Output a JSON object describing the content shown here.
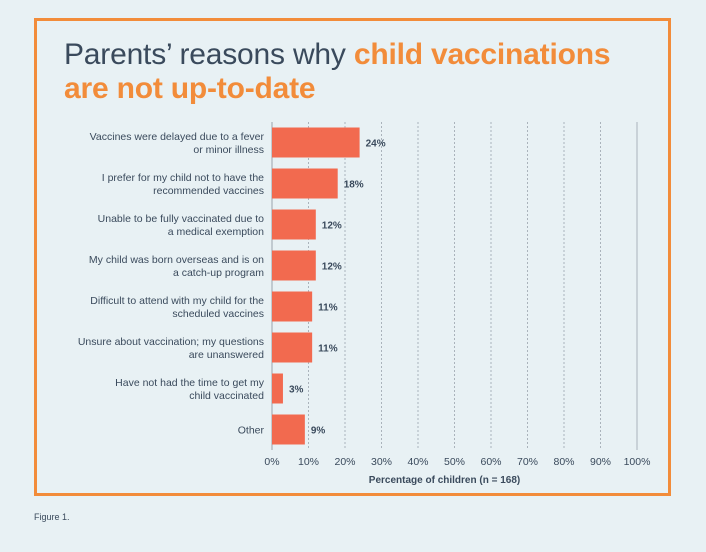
{
  "title_part1": "Parents’ reasons why ",
  "title_highlight_line1": "child vaccinations",
  "title_highlight_line2": "are not up-to-date",
  "caption": "Figure 1.",
  "colors": {
    "bar": "#f26a4f",
    "accent": "#f28c3a",
    "text": "#3a4a5c",
    "grid": "#9aa4ad"
  },
  "chart_data": {
    "type": "bar",
    "orientation": "horizontal",
    "categories": [
      [
        "Vaccines were delayed due to a fever",
        "or minor illness"
      ],
      [
        "I prefer for my child not to have the",
        "recommended vaccines"
      ],
      [
        "Unable to be fully vaccinated due to",
        "a medical exemption"
      ],
      [
        "My child was born overseas and is on",
        "a catch-up program"
      ],
      [
        "Difficult to attend with my child for the",
        "scheduled vaccines"
      ],
      [
        "Unsure about vaccination; my questions",
        "are unanswered"
      ],
      [
        "Have not had the time to get my",
        "child vaccinated"
      ],
      [
        "Other"
      ]
    ],
    "values": [
      24,
      18,
      12,
      12,
      11,
      11,
      3,
      9
    ],
    "value_labels": [
      "24%",
      "18%",
      "12%",
      "12%",
      "11%",
      "11%",
      "3%",
      "9%"
    ],
    "xlim": [
      0,
      100
    ],
    "xticks": [
      0,
      10,
      20,
      30,
      40,
      50,
      60,
      70,
      80,
      90,
      100
    ],
    "xtick_labels": [
      "0%",
      "10%",
      "20%",
      "30%",
      "40%",
      "50%",
      "60%",
      "70%",
      "80%",
      "90%",
      "100%"
    ],
    "xlabel": "Percentage of children (n = 168)",
    "grid": "vertical dashed"
  }
}
